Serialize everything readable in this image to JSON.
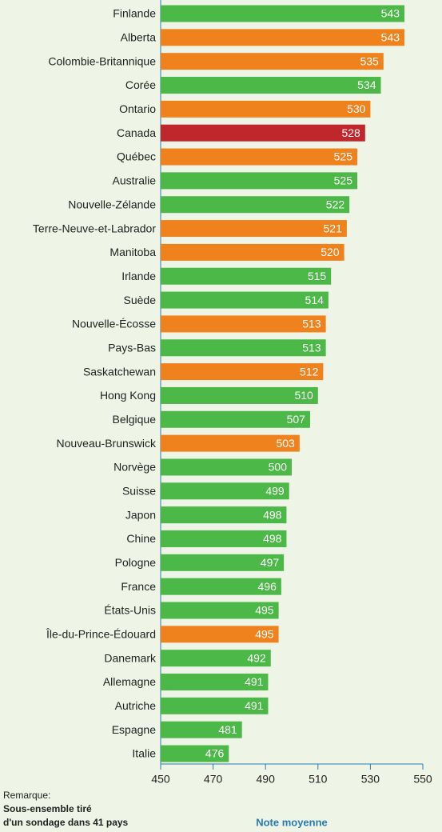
{
  "chart_data": {
    "type": "barh",
    "categories": [
      "Finlande",
      "Alberta",
      "Colombie-Britannique",
      "Corée",
      "Ontario",
      "Canada",
      "Québec",
      "Australie",
      "Nouvelle-Zélande",
      "Terre-Neuve-et-Labrador",
      "Manitoba",
      "Irlande",
      "Suède",
      "Nouvelle-Écosse",
      "Pays-Bas",
      "Saskatchewan",
      "Hong Kong",
      "Belgique",
      "Nouveau-Brunswick",
      "Norvège",
      "Suisse",
      "Japon",
      "Chine",
      "Pologne",
      "France",
      "États-Unis",
      "Île-du-Prince-Édouard",
      "Danemark",
      "Allemagne",
      "Autriche",
      "Espagne",
      "Italie"
    ],
    "values": [
      543,
      543,
      535,
      534,
      530,
      528,
      525,
      525,
      522,
      521,
      520,
      515,
      514,
      513,
      513,
      512,
      510,
      507,
      503,
      500,
      499,
      498,
      498,
      497,
      496,
      495,
      495,
      492,
      491,
      491,
      481,
      476
    ],
    "colors": [
      "#4cb848",
      "#f0821e",
      "#f0821e",
      "#4cb848",
      "#f0821e",
      "#c0272d",
      "#f0821e",
      "#4cb848",
      "#4cb848",
      "#f0821e",
      "#f0821e",
      "#4cb848",
      "#4cb848",
      "#f0821e",
      "#4cb848",
      "#f0821e",
      "#4cb848",
      "#4cb848",
      "#f0821e",
      "#4cb848",
      "#4cb848",
      "#4cb848",
      "#4cb848",
      "#4cb848",
      "#4cb848",
      "#4cb848",
      "#f0821e",
      "#4cb848",
      "#4cb848",
      "#4cb848",
      "#4cb848",
      "#4cb848"
    ],
    "xlim": [
      450,
      550
    ],
    "xticks": [
      450,
      470,
      490,
      510,
      530,
      550
    ],
    "xlabel": "Note moyenne",
    "note": [
      "Remarque:",
      "Sous-ensemble tiré",
      "d'un sondage dans 41 pays"
    ]
  }
}
